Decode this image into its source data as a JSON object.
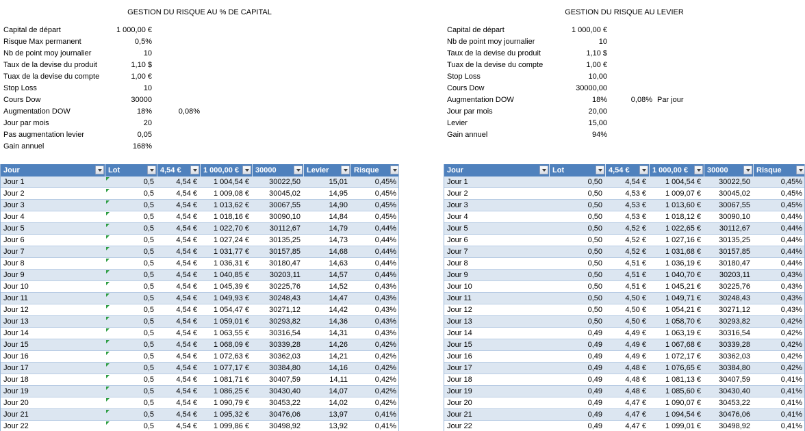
{
  "colors": {
    "header_bg": "#4F81BD",
    "header_text": "#FFFFFF",
    "band_row_bg": "#DCE6F1",
    "row_border": "#B8CCE4",
    "table_border": "#95B3D7",
    "error_indicator_green": "#2E9E44"
  },
  "left_section": {
    "title": "GESTION DU RISQUE AU % DE CAPITAL",
    "params": [
      {
        "label": "Capital de départ",
        "value": "1 000,00 €"
      },
      {
        "label": "Risque Max permanent",
        "value": "0,5%"
      },
      {
        "label": "Nb de point moy journalier",
        "value": "10"
      },
      {
        "label": "Taux de la devise du produit",
        "value": "1,10 $"
      },
      {
        "label": "Tuax de la devise du compte",
        "value": "1,00 €"
      },
      {
        "label": "Stop Loss",
        "value": "10"
      },
      {
        "label": "Cours Dow",
        "value": "30000"
      },
      {
        "label": "Augmentation DOW",
        "value": "18%",
        "extra": "0,08%"
      },
      {
        "label": "Jour par mois",
        "value": "20"
      },
      {
        "label": "Pas augmentation levier",
        "value": "0,05"
      },
      {
        "label": "Gain annuel",
        "value": "168%"
      }
    ],
    "table": {
      "headers": [
        "Jour",
        "Lot",
        "4,54 €",
        "1 000,00 €",
        "30000",
        "Levier",
        "Risque"
      ],
      "error_indicator_column": 1,
      "rows": [
        [
          "Jour 1",
          "0,5",
          "4,54 €",
          "1 004,54 €",
          "30022,50",
          "15,01",
          "0,45%"
        ],
        [
          "Jour 2",
          "0,5",
          "4,54 €",
          "1 009,08 €",
          "30045,02",
          "14,95",
          "0,45%"
        ],
        [
          "Jour 3",
          "0,5",
          "4,54 €",
          "1 013,62 €",
          "30067,55",
          "14,90",
          "0,45%"
        ],
        [
          "Jour 4",
          "0,5",
          "4,54 €",
          "1 018,16 €",
          "30090,10",
          "14,84",
          "0,45%"
        ],
        [
          "Jour 5",
          "0,5",
          "4,54 €",
          "1 022,70 €",
          "30112,67",
          "14,79",
          "0,44%"
        ],
        [
          "Jour 6",
          "0,5",
          "4,54 €",
          "1 027,24 €",
          "30135,25",
          "14,73",
          "0,44%"
        ],
        [
          "Jour 7",
          "0,5",
          "4,54 €",
          "1 031,77 €",
          "30157,85",
          "14,68",
          "0,44%"
        ],
        [
          "Jour 8",
          "0,5",
          "4,54 €",
          "1 036,31 €",
          "30180,47",
          "14,63",
          "0,44%"
        ],
        [
          "Jour 9",
          "0,5",
          "4,54 €",
          "1 040,85 €",
          "30203,11",
          "14,57",
          "0,44%"
        ],
        [
          "Jour 10",
          "0,5",
          "4,54 €",
          "1 045,39 €",
          "30225,76",
          "14,52",
          "0,43%"
        ],
        [
          "Jour 11",
          "0,5",
          "4,54 €",
          "1 049,93 €",
          "30248,43",
          "14,47",
          "0,43%"
        ],
        [
          "Jour 12",
          "0,5",
          "4,54 €",
          "1 054,47 €",
          "30271,12",
          "14,42",
          "0,43%"
        ],
        [
          "Jour 13",
          "0,5",
          "4,54 €",
          "1 059,01 €",
          "30293,82",
          "14,36",
          "0,43%"
        ],
        [
          "Jour 14",
          "0,5",
          "4,54 €",
          "1 063,55 €",
          "30316,54",
          "14,31",
          "0,43%"
        ],
        [
          "Jour 15",
          "0,5",
          "4,54 €",
          "1 068,09 €",
          "30339,28",
          "14,26",
          "0,42%"
        ],
        [
          "Jour 16",
          "0,5",
          "4,54 €",
          "1 072,63 €",
          "30362,03",
          "14,21",
          "0,42%"
        ],
        [
          "Jour 17",
          "0,5",
          "4,54 €",
          "1 077,17 €",
          "30384,80",
          "14,16",
          "0,42%"
        ],
        [
          "Jour 18",
          "0,5",
          "4,54 €",
          "1 081,71 €",
          "30407,59",
          "14,11",
          "0,42%"
        ],
        [
          "Jour 19",
          "0,5",
          "4,54 €",
          "1 086,25 €",
          "30430,40",
          "14,07",
          "0,42%"
        ],
        [
          "Jour 20",
          "0,5",
          "4,54 €",
          "1 090,79 €",
          "30453,22",
          "14,02",
          "0,42%"
        ],
        [
          "Jour 21",
          "0,5",
          "4,54 €",
          "1 095,32 €",
          "30476,06",
          "13,97",
          "0,41%"
        ],
        [
          "Jour 22",
          "0,5",
          "4,54 €",
          "1 099,86 €",
          "30498,92",
          "13,92",
          "0,41%"
        ]
      ]
    }
  },
  "right_section": {
    "title": "GESTION DU RISQUE AU LEVIER",
    "params": [
      {
        "label": "Capital de départ",
        "value": "1 000,00 €"
      },
      {
        "label": "Nb de point moy journalier",
        "value": "10"
      },
      {
        "label": "Taux de la devise du produit",
        "value": "1,10 $"
      },
      {
        "label": "Tuax de la devise du compte",
        "value": "1,00 €"
      },
      {
        "label": "Stop Loss",
        "value": "10,00"
      },
      {
        "label": "Cours Dow",
        "value": "30000,00"
      },
      {
        "label": "Augmentation DOW",
        "value": "18%",
        "extra": "0,08%",
        "extra_suffix": "Par jour"
      },
      {
        "label": "Jour par mois",
        "value": "20,00"
      },
      {
        "label": "Levier",
        "value": "15,00"
      },
      {
        "label": "Gain annuel",
        "value": "94%"
      }
    ],
    "table": {
      "headers": [
        "Jour",
        "Lot",
        "4,54 €",
        "1 000,00 €",
        "30000",
        "Risque"
      ],
      "rows": [
        [
          "Jour 1",
          "0,50",
          "4,54 €",
          "1 004,54 €",
          "30022,50",
          "0,45%"
        ],
        [
          "Jour 2",
          "0,50",
          "4,53 €",
          "1 009,07 €",
          "30045,02",
          "0,45%"
        ],
        [
          "Jour 3",
          "0,50",
          "4,53 €",
          "1 013,60 €",
          "30067,55",
          "0,45%"
        ],
        [
          "Jour 4",
          "0,50",
          "4,53 €",
          "1 018,12 €",
          "30090,10",
          "0,44%"
        ],
        [
          "Jour 5",
          "0,50",
          "4,52 €",
          "1 022,65 €",
          "30112,67",
          "0,44%"
        ],
        [
          "Jour 6",
          "0,50",
          "4,52 €",
          "1 027,16 €",
          "30135,25",
          "0,44%"
        ],
        [
          "Jour 7",
          "0,50",
          "4,52 €",
          "1 031,68 €",
          "30157,85",
          "0,44%"
        ],
        [
          "Jour 8",
          "0,50",
          "4,51 €",
          "1 036,19 €",
          "30180,47",
          "0,44%"
        ],
        [
          "Jour 9",
          "0,50",
          "4,51 €",
          "1 040,70 €",
          "30203,11",
          "0,43%"
        ],
        [
          "Jour 10",
          "0,50",
          "4,51 €",
          "1 045,21 €",
          "30225,76",
          "0,43%"
        ],
        [
          "Jour 11",
          "0,50",
          "4,50 €",
          "1 049,71 €",
          "30248,43",
          "0,43%"
        ],
        [
          "Jour 12",
          "0,50",
          "4,50 €",
          "1 054,21 €",
          "30271,12",
          "0,43%"
        ],
        [
          "Jour 13",
          "0,50",
          "4,50 €",
          "1 058,70 €",
          "30293,82",
          "0,42%"
        ],
        [
          "Jour 14",
          "0,49",
          "4,49 €",
          "1 063,19 €",
          "30316,54",
          "0,42%"
        ],
        [
          "Jour 15",
          "0,49",
          "4,49 €",
          "1 067,68 €",
          "30339,28",
          "0,42%"
        ],
        [
          "Jour 16",
          "0,49",
          "4,49 €",
          "1 072,17 €",
          "30362,03",
          "0,42%"
        ],
        [
          "Jour 17",
          "0,49",
          "4,48 €",
          "1 076,65 €",
          "30384,80",
          "0,42%"
        ],
        [
          "Jour 18",
          "0,49",
          "4,48 €",
          "1 081,13 €",
          "30407,59",
          "0,41%"
        ],
        [
          "Jour 19",
          "0,49",
          "4,48 €",
          "1 085,60 €",
          "30430,40",
          "0,41%"
        ],
        [
          "Jour 20",
          "0,49",
          "4,47 €",
          "1 090,07 €",
          "30453,22",
          "0,41%"
        ],
        [
          "Jour 21",
          "0,49",
          "4,47 €",
          "1 094,54 €",
          "30476,06",
          "0,41%"
        ],
        [
          "Jour 22",
          "0,49",
          "4,47 €",
          "1 099,01 €",
          "30498,92",
          "0,41%"
        ]
      ]
    }
  }
}
